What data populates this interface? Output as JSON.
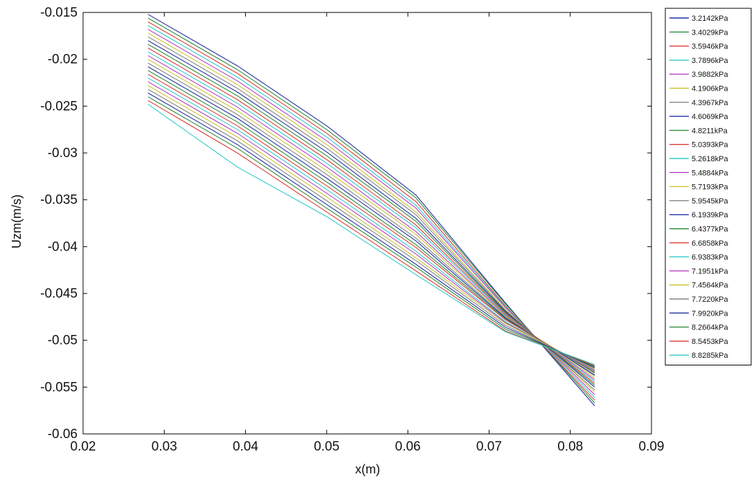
{
  "chart_data": {
    "type": "line",
    "xlabel": "x(m)",
    "ylabel": "Uzm(m/s)",
    "xlim": [
      0.02,
      0.09
    ],
    "ylim": [
      -0.06,
      -0.015
    ],
    "xticks": [
      0.02,
      0.03,
      0.04,
      0.05,
      0.06,
      0.07,
      0.08,
      0.09
    ],
    "xtick_labels": [
      "0.02",
      "0.03",
      "0.04",
      "0.05",
      "0.06",
      "0.07",
      "0.08",
      "0.09"
    ],
    "yticks": [
      -0.015,
      -0.02,
      -0.025,
      -0.03,
      -0.035,
      -0.04,
      -0.045,
      -0.05,
      -0.055,
      -0.06
    ],
    "ytick_labels": [
      "-0.015",
      "-0.02",
      "-0.025",
      "-0.03",
      "-0.035",
      "-0.04",
      "-0.045",
      "-0.05",
      "-0.055",
      "-0.06"
    ],
    "legend_position": "outside-right",
    "grid": false,
    "x": [
      0.028,
      0.039,
      0.05,
      0.061,
      0.072,
      0.083
    ],
    "colors": [
      "#1f2f9f",
      "#2e8b3a",
      "#d93a32",
      "#2ec9c9",
      "#b43fc0",
      "#c9c22e",
      "#808080"
    ],
    "series": [
      {
        "name": "3.2142kPa",
        "values": [
          -0.0152,
          -0.0207,
          -0.0271,
          -0.0345,
          -0.046,
          -0.057
        ]
      },
      {
        "name": "3.4029kPa",
        "values": [
          -0.0156,
          -0.0211,
          -0.0275,
          -0.0348,
          -0.0461,
          -0.0567
        ]
      },
      {
        "name": "3.5946kPa",
        "values": [
          -0.016,
          -0.0215,
          -0.0279,
          -0.0352,
          -0.0463,
          -0.0564
        ]
      },
      {
        "name": "3.7896kPa",
        "values": [
          -0.0164,
          -0.0219,
          -0.0283,
          -0.0356,
          -0.0464,
          -0.0561
        ]
      },
      {
        "name": "3.9882kPa",
        "values": [
          -0.0168,
          -0.0223,
          -0.0287,
          -0.0359,
          -0.0465,
          -0.0558
        ]
      },
      {
        "name": "4.1906kPa",
        "values": [
          -0.0172,
          -0.0227,
          -0.0291,
          -0.0363,
          -0.0467,
          -0.0555
        ]
      },
      {
        "name": "4.3967kPa",
        "values": [
          -0.0176,
          -0.0231,
          -0.0295,
          -0.0366,
          -0.0468,
          -0.0553
        ]
      },
      {
        "name": "4.6069kPa",
        "values": [
          -0.018,
          -0.0235,
          -0.0299,
          -0.037,
          -0.0469,
          -0.055
        ]
      },
      {
        "name": "4.8211kPa",
        "values": [
          -0.0184,
          -0.0239,
          -0.0303,
          -0.0373,
          -0.047,
          -0.0548
        ]
      },
      {
        "name": "5.0393kPa",
        "values": [
          -0.0188,
          -0.0243,
          -0.0307,
          -0.0377,
          -0.0471,
          -0.0546
        ]
      },
      {
        "name": "5.2618kPa",
        "values": [
          -0.0192,
          -0.0247,
          -0.0311,
          -0.038,
          -0.0472,
          -0.0544
        ]
      },
      {
        "name": "5.4884kPa",
        "values": [
          -0.0196,
          -0.0251,
          -0.0315,
          -0.0384,
          -0.0473,
          -0.0542
        ]
      },
      {
        "name": "5.7193kPa",
        "values": [
          -0.02,
          -0.0255,
          -0.0319,
          -0.0387,
          -0.0474,
          -0.054
        ]
      },
      {
        "name": "5.9545kPa",
        "values": [
          -0.0204,
          -0.0259,
          -0.0323,
          -0.0391,
          -0.0475,
          -0.0538
        ]
      },
      {
        "name": "6.1939kPa",
        "values": [
          -0.0208,
          -0.0263,
          -0.0327,
          -0.0394,
          -0.0476,
          -0.0537
        ]
      },
      {
        "name": "6.4377kPa",
        "values": [
          -0.0212,
          -0.0267,
          -0.0331,
          -0.0398,
          -0.0477,
          -0.0535
        ]
      },
      {
        "name": "6.6858kPa",
        "values": [
          -0.0216,
          -0.0271,
          -0.0335,
          -0.0401,
          -0.0478,
          -0.0534
        ]
      },
      {
        "name": "6.9383kPa",
        "values": [
          -0.022,
          -0.0275,
          -0.0339,
          -0.0405,
          -0.048,
          -0.0533
        ]
      },
      {
        "name": "7.1951kPa",
        "values": [
          -0.0224,
          -0.0279,
          -0.0343,
          -0.0408,
          -0.0481,
          -0.0532
        ]
      },
      {
        "name": "7.4564kPa",
        "values": [
          -0.0228,
          -0.0283,
          -0.0347,
          -0.0412,
          -0.0482,
          -0.0531
        ]
      },
      {
        "name": "7.7220kPa",
        "values": [
          -0.0232,
          -0.0287,
          -0.0351,
          -0.0415,
          -0.0484,
          -0.053
        ]
      },
      {
        "name": "7.9920kPa",
        "values": [
          -0.0236,
          -0.0291,
          -0.0355,
          -0.0419,
          -0.0486,
          -0.0529
        ]
      },
      {
        "name": "8.2664kPa",
        "values": [
          -0.024,
          -0.0295,
          -0.0359,
          -0.0422,
          -0.0488,
          -0.0528
        ]
      },
      {
        "name": "8.5453kPa",
        "values": [
          -0.0244,
          -0.03,
          -0.0363,
          -0.0426,
          -0.049,
          -0.0527
        ]
      },
      {
        "name": "8.8285kPa",
        "values": [
          -0.0248,
          -0.0315,
          -0.0368,
          -0.043,
          -0.0491,
          -0.0526
        ]
      }
    ]
  }
}
